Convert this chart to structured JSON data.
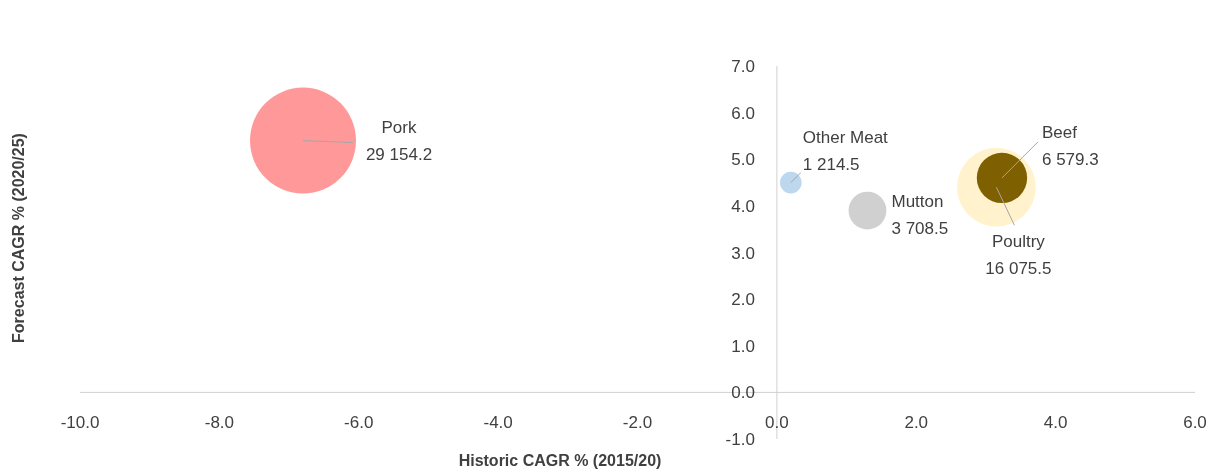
{
  "chart_data": {
    "type": "bubble",
    "xlabel": "Historic CAGR % (2015/20)",
    "ylabel": "Forecast CAGR % (2020/25)",
    "xlim": [
      -10,
      6
    ],
    "xticks": [
      {
        "value": -10,
        "label": "-10.0"
      },
      {
        "value": -8,
        "label": "-8.0"
      },
      {
        "value": -6,
        "label": "-6.0"
      },
      {
        "value": -4,
        "label": "-4.0"
      },
      {
        "value": -2,
        "label": "-2.0"
      },
      {
        "value": 0,
        "label": "0.0"
      },
      {
        "value": 2,
        "label": "2.0"
      },
      {
        "value": 4,
        "label": "4.0"
      },
      {
        "value": 6,
        "label": "6.0"
      }
    ],
    "ylim": [
      -1,
      7
    ],
    "yticks": [
      {
        "value": -1,
        "label": "-1.0"
      },
      {
        "value": 0,
        "label": "0.0"
      },
      {
        "value": 1,
        "label": "1.0"
      },
      {
        "value": 2,
        "label": "2.0"
      },
      {
        "value": 3,
        "label": "3.0"
      },
      {
        "value": 4,
        "label": "4.0"
      },
      {
        "value": 5,
        "label": "5.0"
      },
      {
        "value": 6,
        "label": "6.0"
      },
      {
        "value": 7,
        "label": "7.0"
      }
    ],
    "grid": false,
    "series": [
      {
        "name": "Pork",
        "color": "#ff9999",
        "x": [
          -6.8
        ],
        "values": [
          5.4
        ],
        "sizes": [
          29154.2
        ],
        "value_labels": [
          "29 154.2"
        ]
      },
      {
        "name": "Other Meat",
        "color": "#bdd7ee",
        "x": [
          0.2
        ],
        "values": [
          4.5
        ],
        "sizes": [
          1214.5
        ],
        "value_labels": [
          "1 214.5"
        ]
      },
      {
        "name": "Mutton",
        "color": "#d0d0d0",
        "x": [
          1.3
        ],
        "values": [
          3.9
        ],
        "sizes": [
          3708.5
        ],
        "value_labels": [
          "3 708.5"
        ]
      },
      {
        "name": "Poultry",
        "color": "#fff2cc",
        "x": [
          3.15
        ],
        "values": [
          4.4
        ],
        "sizes": [
          16075.5
        ],
        "value_labels": [
          "16 075.5"
        ]
      },
      {
        "name": "Beef",
        "color": "#7f6000",
        "x": [
          3.23
        ],
        "values": [
          4.6
        ],
        "sizes": [
          6579.3
        ],
        "value_labels": [
          "6 579.3"
        ]
      }
    ]
  }
}
